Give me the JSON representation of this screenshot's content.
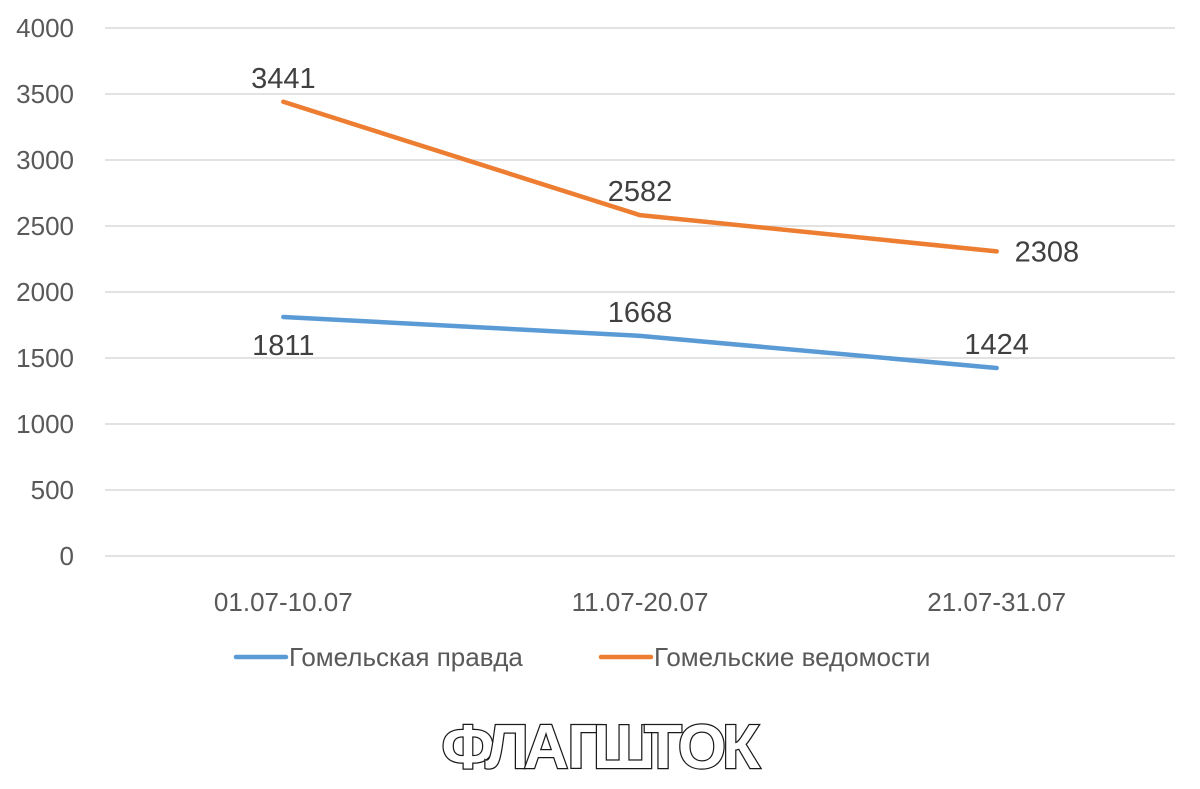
{
  "chart_data": {
    "type": "line",
    "categories": [
      "01.07-10.07",
      "11.07-20.07",
      "21.07-31.07"
    ],
    "series": [
      {
        "name": "Гомельская правда",
        "values": [
          1811,
          1668,
          1424
        ],
        "color": "#5b9bd5"
      },
      {
        "name": "Гомельские ведомости",
        "values": [
          3441,
          2582,
          2308
        ],
        "color": "#ed7d31"
      }
    ],
    "yticks": [
      0,
      500,
      1000,
      1500,
      2000,
      2500,
      3000,
      3500,
      4000
    ],
    "ylim": [
      0,
      4000
    ],
    "grid": true,
    "legend_position": "bottom"
  },
  "logo": {
    "text": "ФЛАГШТОК"
  }
}
